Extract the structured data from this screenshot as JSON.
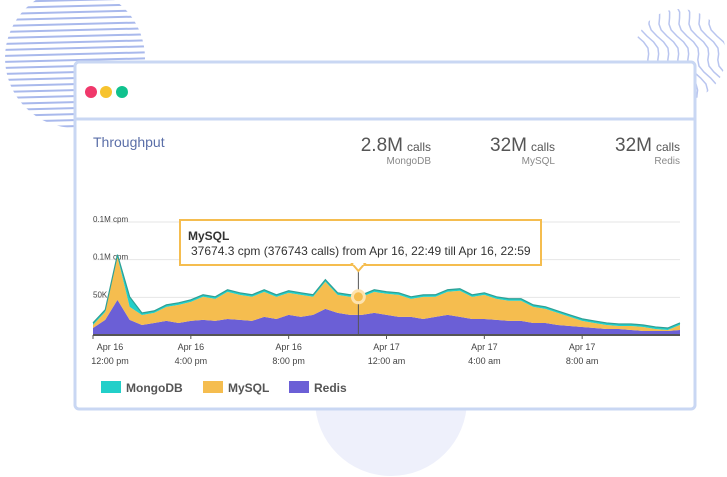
{
  "stats": [
    {
      "value": "2.8M",
      "unit": "calls",
      "name": "MongoDB"
    },
    {
      "value": "32M",
      "unit": "calls",
      "name": "MySQL"
    },
    {
      "value": "32M",
      "unit": "calls",
      "name": "Redis"
    }
  ],
  "chart_data": {
    "type": "stacked-area",
    "title": "Throughput",
    "x": [
      0,
      0.5,
      1,
      1.5,
      2,
      2.5,
      3,
      3.5,
      4,
      4.5,
      5,
      5.5,
      6,
      6.5,
      7,
      7.5,
      8,
      8.5,
      9,
      9.5,
      10,
      10.5,
      11,
      11.5,
      12,
      12.5,
      13,
      13.5,
      14,
      14.5,
      15,
      15.5,
      16,
      16.5,
      17,
      17.5,
      18,
      18.5,
      19,
      19.5,
      20,
      20.5,
      21,
      21.5,
      22,
      22.5,
      23,
      23.5,
      24
    ],
    "series": [
      {
        "name": "Redis",
        "color": "#6b5fd6",
        "values": [
          9300,
          20000,
          46700,
          20000,
          13300,
          16000,
          18700,
          16000,
          18700,
          20000,
          18700,
          21300,
          20000,
          18700,
          24000,
          21300,
          26700,
          24000,
          26700,
          34700,
          29300,
          26700,
          26700,
          29300,
          26700,
          24000,
          24000,
          21300,
          24000,
          26700,
          24000,
          21300,
          21300,
          20000,
          18700,
          18700,
          16000,
          16000,
          13300,
          12000,
          10700,
          9300,
          8000,
          8000,
          6700,
          5300,
          5300,
          5300,
          6700
        ]
      },
      {
        "name": "MySQL",
        "color": "#f5bd4f",
        "values": [
          4000,
          10700,
          57300,
          17300,
          13300,
          13300,
          18700,
          24000,
          25300,
          30700,
          29300,
          36000,
          33300,
          32000,
          33300,
          29300,
          29300,
          29300,
          24000,
          36000,
          24000,
          24000,
          24000,
          28000,
          28000,
          29300,
          24000,
          29300,
          26700,
          30700,
          34700,
          29300,
          32000,
          28000,
          26700,
          26700,
          21300,
          18700,
          16000,
          12000,
          8000,
          6700,
          5300,
          4000,
          5300,
          5300,
          2700,
          1300,
          6700
        ]
      },
      {
        "name": "MongoDB",
        "color": "#22cfc9",
        "values": [
          2700,
          2700,
          2700,
          13300,
          2700,
          2700,
          2700,
          2700,
          2700,
          2700,
          2700,
          2700,
          2700,
          2700,
          2700,
          2700,
          2700,
          2700,
          2700,
          2700,
          2700,
          2700,
          2700,
          2700,
          2700,
          2700,
          2700,
          2700,
          2700,
          2700,
          2700,
          2700,
          2700,
          2700,
          2700,
          2700,
          2700,
          2700,
          2700,
          2700,
          2700,
          2700,
          2700,
          2700,
          2700,
          2700,
          2700,
          2700,
          2700
        ]
      }
    ],
    "xlim": [
      0,
      24
    ],
    "xticks": [
      {
        "value": 0,
        "label": "Apr 16\n12:00 pm"
      },
      {
        "value": 4,
        "label": "Apr 16\n4:00 pm"
      },
      {
        "value": 8,
        "label": "Apr 16\n8:00 pm"
      },
      {
        "value": 12,
        "label": "Apr 17\n12:00 am"
      },
      {
        "value": 16,
        "label": "Apr 17\n4:00 am"
      },
      {
        "value": 20,
        "label": "Apr 17\n8:00 am"
      }
    ],
    "ylim": [
      0,
      150000
    ],
    "yticks": [
      {
        "value": 150000,
        "label": "0.1M cpm"
      },
      {
        "value": 100000,
        "label": "0.1M cpm"
      },
      {
        "value": 50000,
        "label": "50K cpm"
      }
    ],
    "grid": true,
    "tooltip": {
      "x": 10.85,
      "series": "MySQL",
      "text": "37674.3 cpm (376743 calls) from Apr 16, 22:49 till Apr 16, 22:59"
    }
  }
}
